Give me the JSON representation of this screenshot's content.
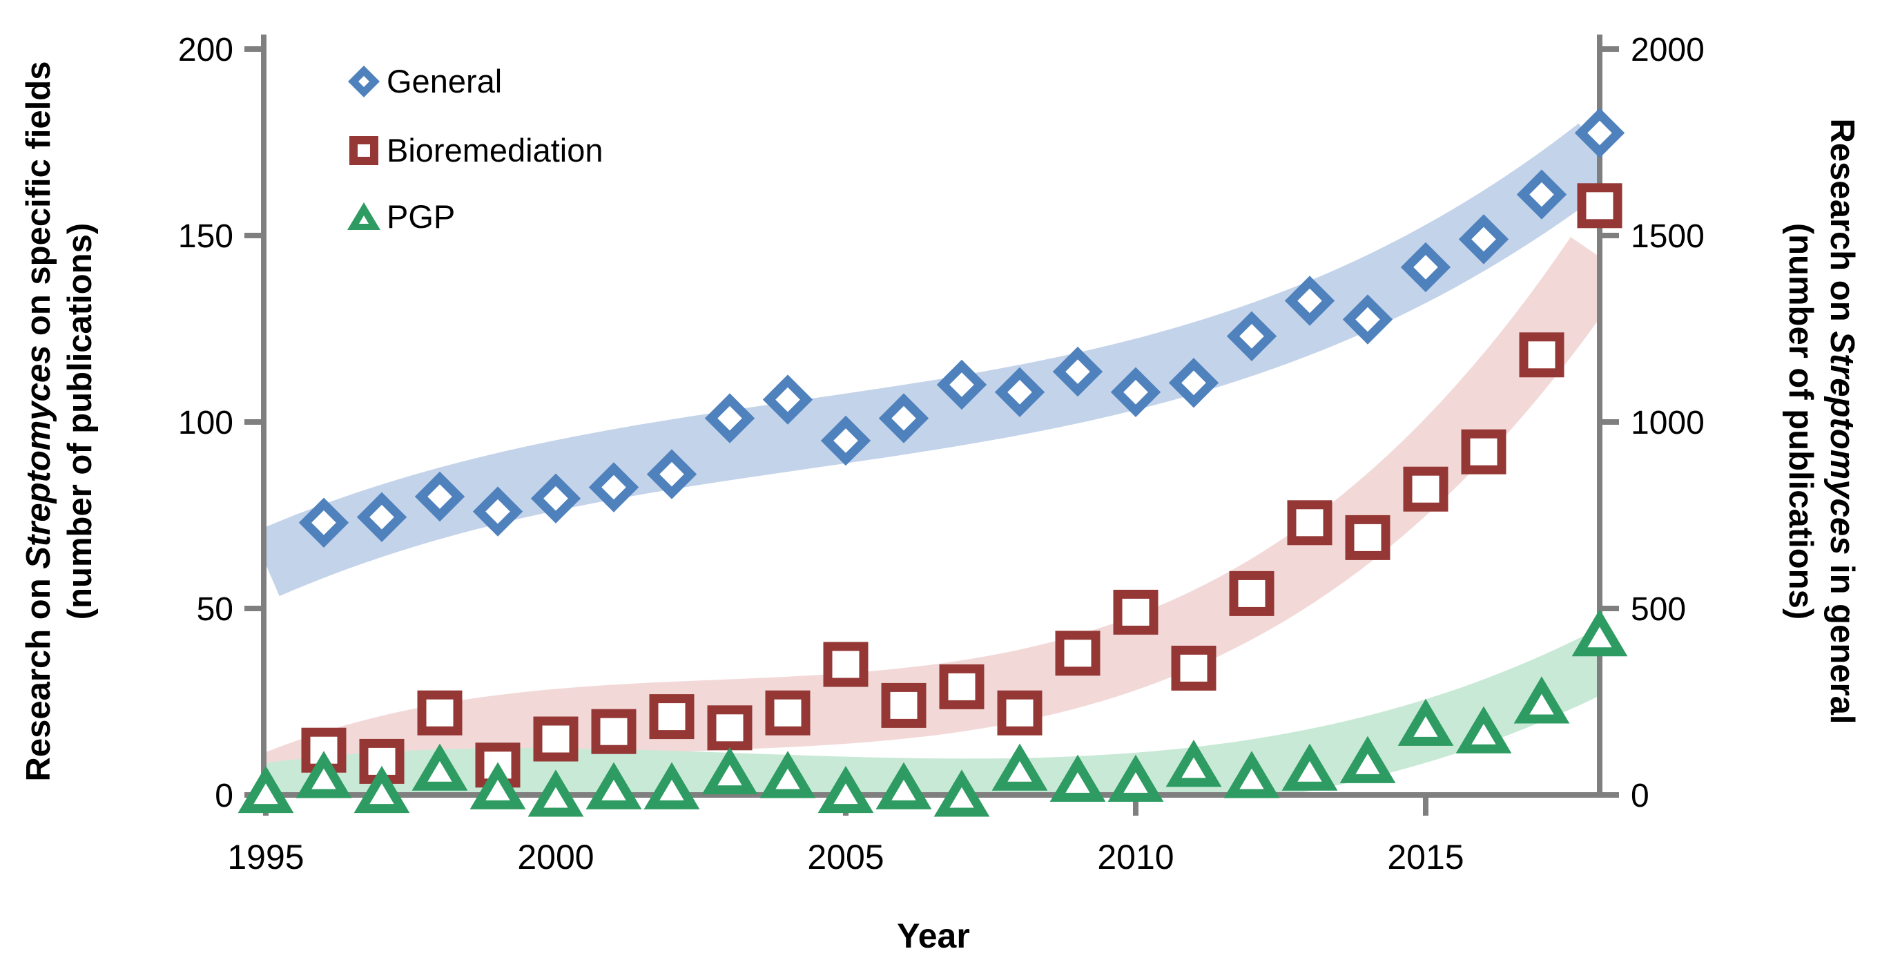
{
  "page": {
    "background": "#ffffff"
  },
  "chart_data": {
    "type": "scatter",
    "title": "",
    "xlabel": "Year",
    "x_range": [
      1995,
      2018
    ],
    "x_ticks": [
      1995,
      2000,
      2005,
      2010,
      2015
    ],
    "grid": false,
    "legend_position": "top-left-inside",
    "axis_color": "#7f7f7f",
    "text_color": "#000000",
    "left_axis": {
      "title_parts": [
        "Research on ",
        "Streptomyces",
        " on specific fields"
      ],
      "subtitle": "(number of publications)",
      "ticks": [
        0,
        50,
        100,
        150,
        200
      ],
      "range": [
        0,
        200
      ]
    },
    "right_axis": {
      "title_parts": [
        "Research on ",
        "Streptomyces",
        " in general"
      ],
      "subtitle": "(number of publications)",
      "ticks": [
        0,
        500,
        1000,
        1500,
        2000
      ],
      "range": [
        0,
        2000
      ]
    },
    "series": [
      {
        "name": "General",
        "axis": "right",
        "marker": "diamond",
        "color": "#4f81bd",
        "band_color": "#c3d3e9",
        "years": [
          1996,
          1997,
          1998,
          1999,
          2000,
          2001,
          2002,
          2003,
          2004,
          2005,
          2006,
          2007,
          2008,
          2009,
          2010,
          2011,
          2012,
          2013,
          2014,
          2015,
          2016,
          2017,
          2018
        ],
        "values": [
          730,
          745,
          800,
          760,
          795,
          825,
          860,
          1010,
          1060,
          950,
          1010,
          1100,
          1080,
          1135,
          1080,
          1105,
          1230,
          1325,
          1275,
          1415,
          1490,
          1610,
          1775
        ]
      },
      {
        "name": "Bioremediation",
        "axis": "left",
        "marker": "square",
        "color": "#953735",
        "band_color": "#f2d9d8",
        "years": [
          1996,
          1997,
          1998,
          1999,
          2000,
          2001,
          2002,
          2003,
          2004,
          2005,
          2006,
          2007,
          2008,
          2009,
          2010,
          2011,
          2012,
          2013,
          2014,
          2015,
          2016,
          2017,
          2018
        ],
        "values": [
          12,
          9,
          22,
          8,
          15,
          17,
          21,
          18,
          22,
          35,
          24,
          29,
          22,
          38,
          49,
          34,
          54,
          73,
          69,
          82,
          92,
          118,
          158
        ]
      },
      {
        "name": "PGP",
        "axis": "left",
        "marker": "triangle",
        "color": "#2e9c62",
        "band_color": "#c8e9d6",
        "years": [
          1995,
          1996,
          1997,
          1998,
          1999,
          2000,
          2001,
          2002,
          2003,
          2004,
          2005,
          2006,
          2007,
          2008,
          2009,
          2010,
          2011,
          2012,
          2013,
          2014,
          2015,
          2016,
          2017,
          2018
        ],
        "values": [
          1,
          5,
          1,
          7,
          2,
          0,
          2,
          2,
          6,
          5,
          1,
          2,
          0,
          7,
          4,
          4,
          8,
          5,
          7,
          9,
          19,
          17,
          25,
          43
        ]
      }
    ],
    "legend": {
      "items": [
        {
          "series": 0,
          "label": "General"
        },
        {
          "series": 1,
          "label": "Bioremediation"
        },
        {
          "series": 2,
          "label": "PGP"
        }
      ]
    }
  }
}
